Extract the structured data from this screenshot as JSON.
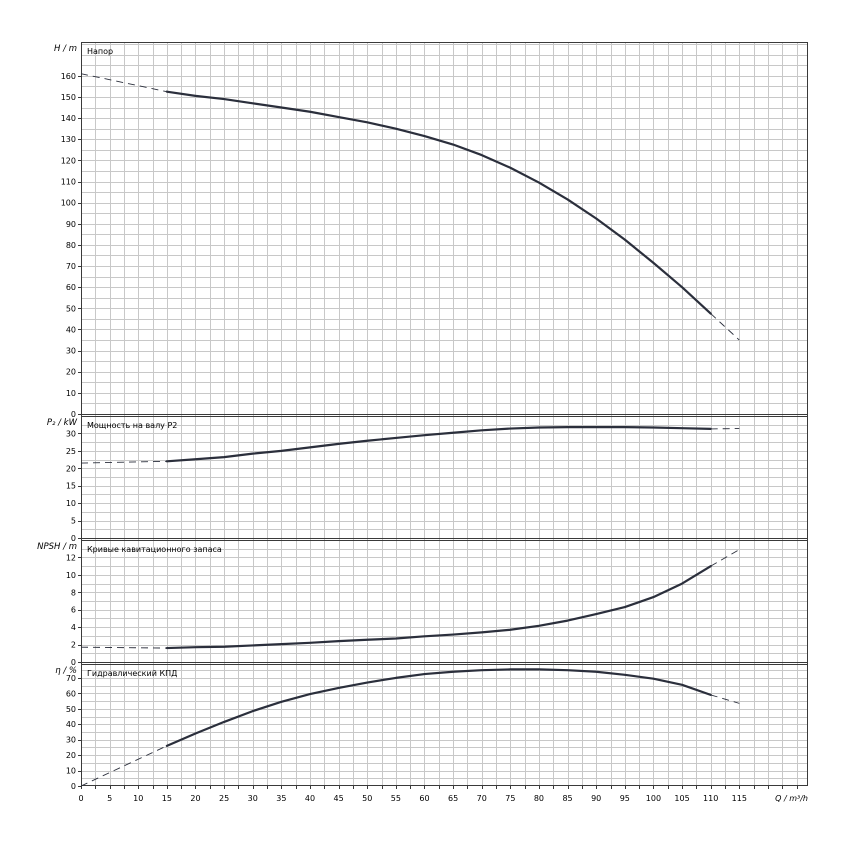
{
  "chart_data": {
    "type": "line",
    "x_axis": {
      "label": "Q / m³/h",
      "range": [
        0,
        127
      ],
      "ticks": [
        0,
        5,
        10,
        15,
        20,
        25,
        30,
        35,
        40,
        45,
        50,
        55,
        60,
        65,
        70,
        75,
        80,
        85,
        90,
        95,
        100,
        105,
        110,
        115
      ]
    },
    "panels": [
      {
        "id": "head",
        "title": "Напор",
        "ylabel": "H / m",
        "ylim": [
          0,
          176
        ],
        "yticks": [
          0,
          10,
          20,
          30,
          40,
          50,
          60,
          70,
          80,
          90,
          100,
          110,
          120,
          130,
          140,
          150,
          160
        ],
        "dashed_before": {
          "x": [
            0,
            15
          ],
          "y": [
            161,
            152.5
          ]
        },
        "solid": {
          "x": [
            15,
            20,
            25,
            30,
            35,
            40,
            45,
            50,
            55,
            60,
            65,
            70,
            75,
            80,
            85,
            90,
            95,
            100,
            105,
            110
          ],
          "y": [
            152.5,
            150.5,
            149,
            147,
            145,
            143,
            140.5,
            138,
            135,
            131.5,
            127.5,
            122.5,
            116.5,
            109.5,
            101.5,
            92.5,
            82.5,
            71.5,
            60,
            47.5
          ]
        },
        "dashed_after": {
          "x": [
            110,
            115
          ],
          "y": [
            47.5,
            35
          ]
        }
      },
      {
        "id": "power",
        "title": "Мощность на валу P2",
        "ylabel": "P₂ / kW",
        "ylim": [
          0,
          35
        ],
        "yticks": [
          0,
          5,
          10,
          15,
          20,
          25,
          30
        ],
        "dashed_before": {
          "x": [
            0,
            15
          ],
          "y": [
            21.5,
            22
          ]
        },
        "solid": {
          "x": [
            15,
            20,
            25,
            30,
            35,
            40,
            45,
            50,
            55,
            60,
            65,
            70,
            75,
            80,
            85,
            90,
            95,
            100,
            105,
            110
          ],
          "y": [
            22,
            22.6,
            23.2,
            24.2,
            25,
            26,
            27,
            27.9,
            28.7,
            29.5,
            30.2,
            30.9,
            31.4,
            31.7,
            31.8,
            31.8,
            31.8,
            31.7,
            31.5,
            31.3
          ]
        },
        "dashed_after": {
          "x": [
            110,
            115
          ],
          "y": [
            31.3,
            31.4
          ]
        }
      },
      {
        "id": "npsh",
        "title": "Кривые кавитационного запаса",
        "ylabel": "NPSH / m",
        "ylim": [
          0,
          14
        ],
        "yticks": [
          0,
          2,
          4,
          6,
          8,
          10,
          12
        ],
        "dashed_before": {
          "x": [
            0,
            15
          ],
          "y": [
            1.7,
            1.6
          ]
        },
        "solid": {
          "x": [
            15,
            20,
            25,
            30,
            35,
            40,
            45,
            50,
            55,
            60,
            65,
            70,
            75,
            80,
            85,
            90,
            95,
            100,
            105,
            110
          ],
          "y": [
            1.6,
            1.7,
            1.75,
            1.9,
            2.05,
            2.2,
            2.4,
            2.55,
            2.7,
            2.95,
            3.15,
            3.4,
            3.7,
            4.15,
            4.75,
            5.5,
            6.3,
            7.45,
            9,
            11
          ]
        },
        "dashed_after": {
          "x": [
            110,
            115
          ],
          "y": [
            11,
            12.9
          ]
        }
      },
      {
        "id": "efficiency",
        "title": "Гидравлический КПД",
        "ylabel": "η / %",
        "ylim": [
          0,
          79
        ],
        "yticks": [
          0,
          10,
          20,
          30,
          40,
          50,
          60,
          70
        ],
        "dashed_before": {
          "x": [
            0,
            15
          ],
          "y": [
            0,
            26
          ]
        },
        "solid": {
          "x": [
            15,
            20,
            25,
            30,
            35,
            40,
            45,
            50,
            55,
            60,
            65,
            70,
            75,
            80,
            85,
            90,
            95,
            100,
            105,
            110
          ],
          "y": [
            26,
            34,
            41.5,
            48.5,
            54.5,
            59.5,
            63.5,
            67,
            70,
            72.5,
            74,
            75,
            75.5,
            75.5,
            75,
            74,
            72,
            69.5,
            65.5,
            59
          ]
        },
        "dashed_after": {
          "x": [
            110,
            115
          ],
          "y": [
            59,
            53.5
          ]
        }
      }
    ]
  }
}
